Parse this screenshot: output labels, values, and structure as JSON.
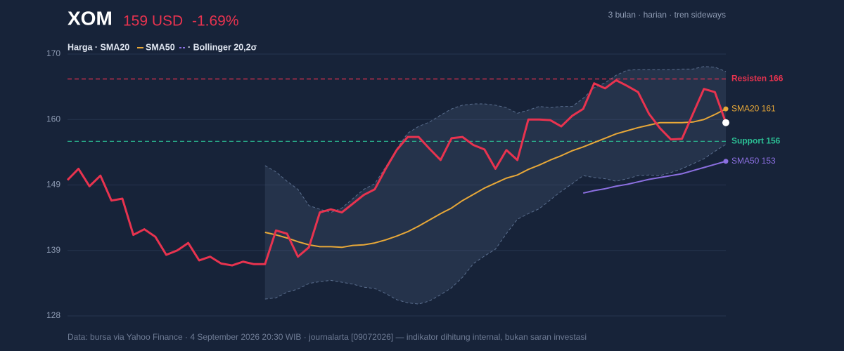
{
  "chart_data": {
    "type": "line",
    "title": "XOM",
    "price": "159 USD",
    "change": "-1.69%",
    "subtitle": "3 bulan · harian · tren sideways",
    "legend_text": [
      "Harga · SMA20",
      "SMA50",
      "· Bollinger 20,2σ"
    ],
    "source": "Data: bursa via Yahoo Finance · 4 September 2026 20:30 WIB · journalarta [09072026] — indikator dihitung internal, bukan saran investasi",
    "ylim": [
      128,
      170
    ],
    "yticks": [
      {
        "value": 128,
        "label": "128"
      },
      {
        "value": 138.5,
        "label": "139"
      },
      {
        "value": 149,
        "label": "149"
      },
      {
        "value": 159.5,
        "label": "160"
      },
      {
        "value": 170,
        "label": "170"
      }
    ],
    "grid": true,
    "hlines": [
      {
        "label": "Resisten 166",
        "value": 166,
        "color": "#e8334f"
      },
      {
        "label": "Support 156",
        "value": 156,
        "color": "#2bbf94"
      }
    ],
    "band": {
      "color": "#5a6e8e",
      "upper": [
        null,
        null,
        null,
        null,
        null,
        null,
        null,
        null,
        null,
        null,
        null,
        null,
        null,
        null,
        null,
        null,
        null,
        null,
        152.1,
        151.1,
        149.6,
        148.3,
        145.7,
        145.1,
        144.6,
        145.3,
        146.8,
        148.3,
        149.2,
        151.9,
        154.8,
        157.3,
        158.4,
        159.1,
        160.2,
        161.2,
        161.8,
        162.0,
        162.0,
        161.8,
        161.4,
        160.5,
        161.0,
        161.6,
        161.4,
        161.6,
        161.6,
        162.9,
        164.6,
        165.4,
        166.6,
        167.4,
        167.5,
        167.5,
        167.5,
        167.5,
        167.6,
        167.6,
        168.0,
        167.9,
        167.2
      ],
      "lower": [
        null,
        null,
        null,
        null,
        null,
        null,
        null,
        null,
        null,
        null,
        null,
        null,
        null,
        null,
        null,
        null,
        null,
        null,
        130.7,
        130.9,
        131.8,
        132.3,
        133.2,
        133.5,
        133.7,
        133.4,
        133.1,
        132.6,
        132.4,
        131.6,
        130.6,
        130.1,
        129.9,
        130.4,
        131.4,
        132.5,
        134.2,
        136.4,
        137.6,
        138.7,
        141.2,
        143.5,
        144.4,
        145.2,
        146.6,
        148.0,
        149.2,
        150.5,
        150.2,
        150.0,
        149.6,
        150.0,
        150.5,
        150.6,
        150.5,
        151.0,
        151.6,
        152.4,
        153.2,
        154.4,
        155.5
      ]
    },
    "series": [
      {
        "name": "Harga",
        "color": "#e8334f",
        "width": 3,
        "values": [
          149.8,
          151.6,
          148.8,
          150.5,
          146.5,
          146.8,
          141.0,
          141.9,
          140.7,
          137.8,
          138.5,
          139.7,
          136.9,
          137.5,
          136.4,
          136.1,
          136.7,
          136.3,
          136.3,
          141.7,
          141.2,
          137.5,
          139.0,
          144.6,
          145.1,
          144.6,
          146.0,
          147.4,
          148.3,
          151.6,
          154.6,
          156.7,
          156.7,
          154.8,
          153.0,
          156.5,
          156.7,
          155.4,
          154.7,
          151.6,
          154.6,
          153.0,
          159.5,
          159.5,
          159.4,
          158.4,
          160.1,
          161.2,
          165.3,
          164.5,
          165.8,
          164.9,
          163.9,
          160.4,
          158.1,
          156.3,
          156.4,
          160.4,
          164.4,
          163.9,
          159.0
        ]
      },
      {
        "name": "SMA20",
        "color": "#e8a838",
        "width": 2,
        "end_label": "SMA20 161",
        "values": [
          null,
          null,
          null,
          null,
          null,
          null,
          null,
          null,
          null,
          null,
          null,
          null,
          null,
          null,
          null,
          null,
          null,
          null,
          141.4,
          141.0,
          140.5,
          139.9,
          139.4,
          139.1,
          139.1,
          139.0,
          139.3,
          139.4,
          139.7,
          140.2,
          140.8,
          141.5,
          142.4,
          143.4,
          144.4,
          145.3,
          146.5,
          147.5,
          148.5,
          149.3,
          150.1,
          150.6,
          151.5,
          152.2,
          153.0,
          153.7,
          154.5,
          155.1,
          155.8,
          156.5,
          157.2,
          157.7,
          158.2,
          158.6,
          159.0,
          159.0,
          159.0,
          159.1,
          159.5,
          160.3,
          161.2
        ]
      },
      {
        "name": "SMA50",
        "color": "#8b6fe0",
        "width": 2,
        "end_label": "SMA50 153",
        "values": [
          null,
          null,
          null,
          null,
          null,
          null,
          null,
          null,
          null,
          null,
          null,
          null,
          null,
          null,
          null,
          null,
          null,
          null,
          null,
          null,
          null,
          null,
          null,
          null,
          null,
          null,
          null,
          null,
          null,
          null,
          null,
          null,
          null,
          null,
          null,
          null,
          null,
          null,
          null,
          null,
          null,
          null,
          null,
          null,
          null,
          null,
          null,
          147.7,
          148.1,
          148.4,
          148.8,
          149.1,
          149.5,
          149.9,
          150.2,
          150.5,
          150.8,
          151.3,
          151.8,
          152.3,
          152.8
        ]
      }
    ]
  }
}
